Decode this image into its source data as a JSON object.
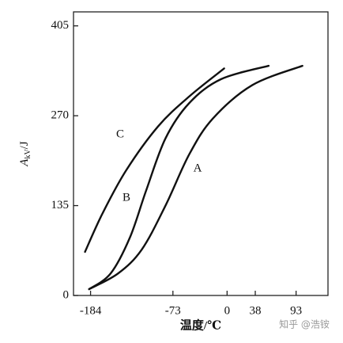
{
  "chart_data": {
    "type": "line",
    "y_label": [
      "A",
      "kV",
      "/J"
    ],
    "x_label": "温度/℃",
    "watermark": "知乎 @浩铵",
    "xlim": [
      -207,
      136
    ],
    "ylim": [
      0,
      426
    ],
    "xticks": [
      -184,
      -73,
      0,
      38,
      93
    ],
    "yticks": [
      0,
      135,
      270,
      405
    ],
    "series": [
      {
        "name": "C",
        "color": "#111111",
        "x": [
          -191.5,
          -168,
          -136,
          -93,
          -51,
          -4
        ],
        "values": [
          65.5,
          123,
          188,
          254,
          299,
          341
        ]
      },
      {
        "name": "B",
        "color": "#111111",
        "x": [
          -186,
          -157,
          -131,
          -109,
          -83,
          -51,
          -8,
          56
        ],
        "values": [
          9.5,
          33,
          87,
          158,
          236,
          289,
          325,
          345
        ]
      },
      {
        "name": "A",
        "color": "#111111",
        "x": [
          -186,
          -147,
          -115,
          -83,
          -51,
          -19,
          34,
          101.5
        ],
        "values": [
          9.5,
          33,
          69,
          135,
          212,
          266,
          316,
          345
        ]
      }
    ]
  }
}
